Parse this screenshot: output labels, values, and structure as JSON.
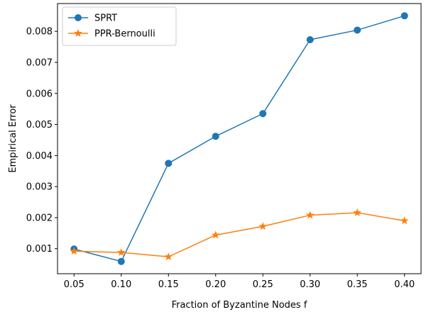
{
  "chart_data": {
    "type": "line",
    "title": "",
    "xlabel": "Fraction of Byzantine Nodes f",
    "ylabel": "Empirical Error",
    "x": [
      0.05,
      0.1,
      0.15,
      0.2,
      0.25,
      0.3,
      0.35,
      0.4
    ],
    "x_tick_labels": [
      "0.05",
      "0.10",
      "0.15",
      "0.20",
      "0.25",
      "0.30",
      "0.35",
      "0.40"
    ],
    "y_ticks": [
      0.001,
      0.002,
      0.003,
      0.004,
      0.005,
      0.006,
      0.007,
      0.008
    ],
    "y_tick_labels": [
      "0.001",
      "0.002",
      "0.003",
      "0.004",
      "0.005",
      "0.006",
      "0.007",
      "0.008"
    ],
    "xlim": [
      0.0325,
      0.4175
    ],
    "ylim": [
      0.000195,
      0.008895
    ],
    "grid": false,
    "legend_position": "top-left",
    "series": [
      {
        "name": "SPRT",
        "color": "#1f77b4",
        "marker": "circle",
        "values": [
          0.00099,
          0.00059,
          0.00375,
          0.00462,
          0.00535,
          0.00773,
          0.00804,
          0.0085
        ]
      },
      {
        "name": "PPR-Bernoulli",
        "color": "#ff7f0e",
        "marker": "star",
        "values": [
          0.00092,
          0.00088,
          0.00074,
          0.00144,
          0.00172,
          0.00208,
          0.00216,
          0.0019
        ]
      }
    ]
  }
}
